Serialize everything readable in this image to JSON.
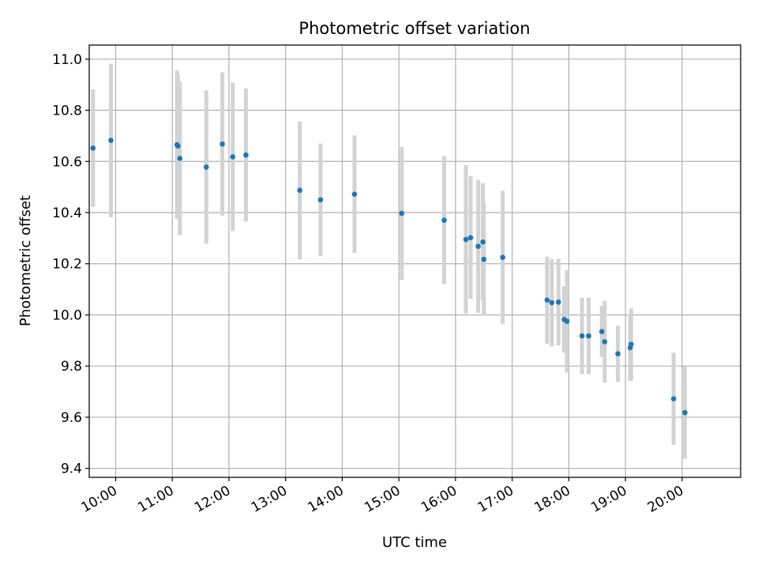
{
  "chart_data": {
    "type": "scatter",
    "title": "Photometric offset variation",
    "xlabel": "UTC time",
    "ylabel": "Photometric offset",
    "x_ticks": [
      "10:00",
      "11:00",
      "12:00",
      "13:00",
      "14:00",
      "15:00",
      "16:00",
      "17:00",
      "18:00",
      "19:00",
      "20:00"
    ],
    "y_ticks": [
      "9.4",
      "9.6",
      "9.8",
      "10.0",
      "10.2",
      "10.4",
      "10.6",
      "10.8",
      "11.0"
    ],
    "xlim": [
      "09:32",
      "21:02"
    ],
    "ylim": [
      9.365,
      11.055
    ],
    "grid": true,
    "colors": {
      "marker": "#1f77b4",
      "errorbar": "#d3d3d3",
      "grid": "#b0b0b0"
    },
    "points": [
      {
        "t": "09:36",
        "y": 10.652,
        "err": 0.23
      },
      {
        "t": "09:55",
        "y": 10.682,
        "err": 0.3
      },
      {
        "t": "11:05",
        "y": 10.665,
        "err": 0.29
      },
      {
        "t": "11:06",
        "y": 10.66,
        "err": 0.28
      },
      {
        "t": "11:08",
        "y": 10.612,
        "err": 0.3
      },
      {
        "t": "11:36",
        "y": 10.578,
        "err": 0.3
      },
      {
        "t": "11:53",
        "y": 10.668,
        "err": 0.28
      },
      {
        "t": "12:04",
        "y": 10.618,
        "err": 0.29
      },
      {
        "t": "12:18",
        "y": 10.625,
        "err": 0.26
      },
      {
        "t": "13:15",
        "y": 10.487,
        "err": 0.27
      },
      {
        "t": "13:37",
        "y": 10.45,
        "err": 0.22
      },
      {
        "t": "14:13",
        "y": 10.472,
        "err": 0.23
      },
      {
        "t": "15:03",
        "y": 10.397,
        "err": 0.26
      },
      {
        "t": "15:48",
        "y": 10.37,
        "err": 0.25
      },
      {
        "t": "16:11",
        "y": 10.295,
        "err": 0.29
      },
      {
        "t": "16:16",
        "y": 10.302,
        "err": 0.24
      },
      {
        "t": "16:24",
        "y": 10.268,
        "err": 0.26
      },
      {
        "t": "16:29",
        "y": 10.285,
        "err": 0.23
      },
      {
        "t": "16:30",
        "y": 10.217,
        "err": 0.22
      },
      {
        "t": "16:50",
        "y": 10.225,
        "err": 0.26
      },
      {
        "t": "17:37",
        "y": 10.058,
        "err": 0.17
      },
      {
        "t": "17:42",
        "y": 10.048,
        "err": 0.17
      },
      {
        "t": "17:49",
        "y": 10.05,
        "err": 0.17
      },
      {
        "t": "17:55",
        "y": 9.982,
        "err": 0.13
      },
      {
        "t": "17:58",
        "y": 9.975,
        "err": 0.2
      },
      {
        "t": "18:14",
        "y": 9.918,
        "err": 0.15
      },
      {
        "t": "18:21",
        "y": 9.918,
        "err": 0.15
      },
      {
        "t": "18:35",
        "y": 9.935,
        "err": 0.1
      },
      {
        "t": "18:38",
        "y": 9.895,
        "err": 0.16
      },
      {
        "t": "18:52",
        "y": 9.848,
        "err": 0.11
      },
      {
        "t": "19:05",
        "y": 9.872,
        "err": 0.13
      },
      {
        "t": "19:06",
        "y": 9.885,
        "err": 0.14
      },
      {
        "t": "19:51",
        "y": 9.672,
        "err": 0.18
      },
      {
        "t": "20:03",
        "y": 9.618,
        "err": 0.18
      }
    ]
  }
}
